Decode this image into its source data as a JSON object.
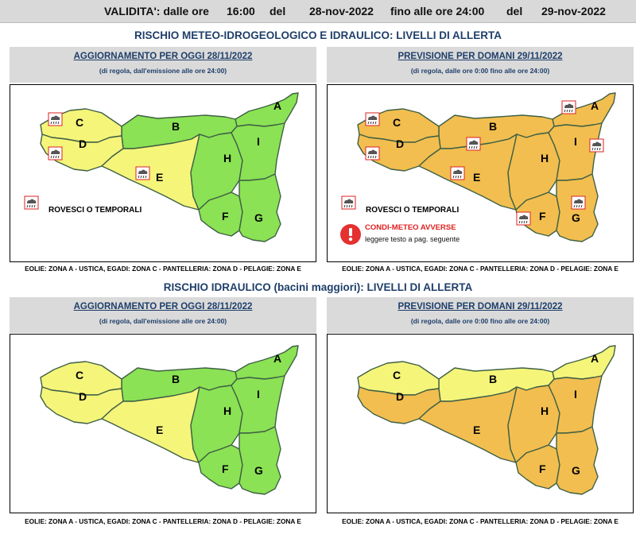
{
  "validity": {
    "label": "VALIDITA': dalle ore",
    "from_time": "16:00",
    "del1": "del",
    "from_date": "28-nov-2022",
    "until": "fino alle ore 24:00",
    "del2": "del",
    "to_date": "29-nov-2022"
  },
  "sections": [
    {
      "title": "RISCHIO METEO-IDROGEOLOGICO E IDRAULICO: LIVELLI DI ALLERTA",
      "panels": [
        {
          "title": "AGGIORNAMENTO PER OGGI 28/11/2022",
          "subtitle": "(di regola, dall'emissione alle ore 24:00)",
          "zones": {
            "A": "green",
            "B": "green",
            "C": "yellow",
            "D": "yellow",
            "E": "yellow",
            "F": "green",
            "G": "green",
            "H": "green",
            "I": "green"
          },
          "legend": "ROVESCI O TEMPORALI",
          "caption": "EOLIE: ZONA A - USTICA, EGADI: ZONA C - PANTELLERIA: ZONA D - PELAGIE: ZONA E"
        },
        {
          "title": "PREVISIONE PER DOMANI 29/11/2022",
          "subtitle": "(di regola, dalle ore 0:00 fino alle ore 24:00)",
          "zones": {
            "A": "orange",
            "B": "orange",
            "C": "orange",
            "D": "orange",
            "E": "orange",
            "F": "orange",
            "G": "orange",
            "H": "orange",
            "I": "orange"
          },
          "legend": "ROVESCI O TEMPORALI",
          "warning_title": "CONDI-METEO AVVERSE",
          "warning_text": "leggere testo a pag. seguente",
          "caption": "EOLIE: ZONA A - USTICA, EGADI: ZONA C - PANTELLERIA: ZONA D - PELAGIE: ZONA E"
        }
      ]
    },
    {
      "title": "RISCHIO IDRAULICO (bacini maggiori): LIVELLI DI ALLERTA",
      "panels": [
        {
          "title": "AGGIORNAMENTO PER OGGI 28/11/2022",
          "subtitle": "(di regola, dall'emissione alle ore 24:00)",
          "zones": {
            "A": "green",
            "B": "green",
            "C": "yellow",
            "D": "yellow",
            "E": "yellow",
            "F": "green",
            "G": "green",
            "H": "green",
            "I": "green"
          },
          "caption": "EOLIE: ZONA A - USTICA, EGADI: ZONA C - PANTELLERIA: ZONA D - PELAGIE: ZONA E"
        },
        {
          "title": "PREVISIONE PER DOMANI 29/11/2022",
          "subtitle": "(di regola, dalle ore 0:00 fino alle ore 24:00)",
          "zones": {
            "A": "yellow",
            "B": "yellow",
            "C": "yellow",
            "D": "orange",
            "E": "orange",
            "F": "orange",
            "G": "orange",
            "H": "orange",
            "I": "orange"
          },
          "caption": "EOLIE: ZONA A - USTICA, EGADI: ZONA C - PANTELLERIA: ZONA D - PELAGIE: ZONA E"
        }
      ]
    }
  ],
  "colors": {
    "green": "#8be254",
    "yellow": "#f5f57a",
    "orange": "#f2be4f",
    "title_blue": "#1f3f6a",
    "border": "#3f6045",
    "warning_red": "#e53030"
  },
  "icon": "thunderstorm-icon"
}
